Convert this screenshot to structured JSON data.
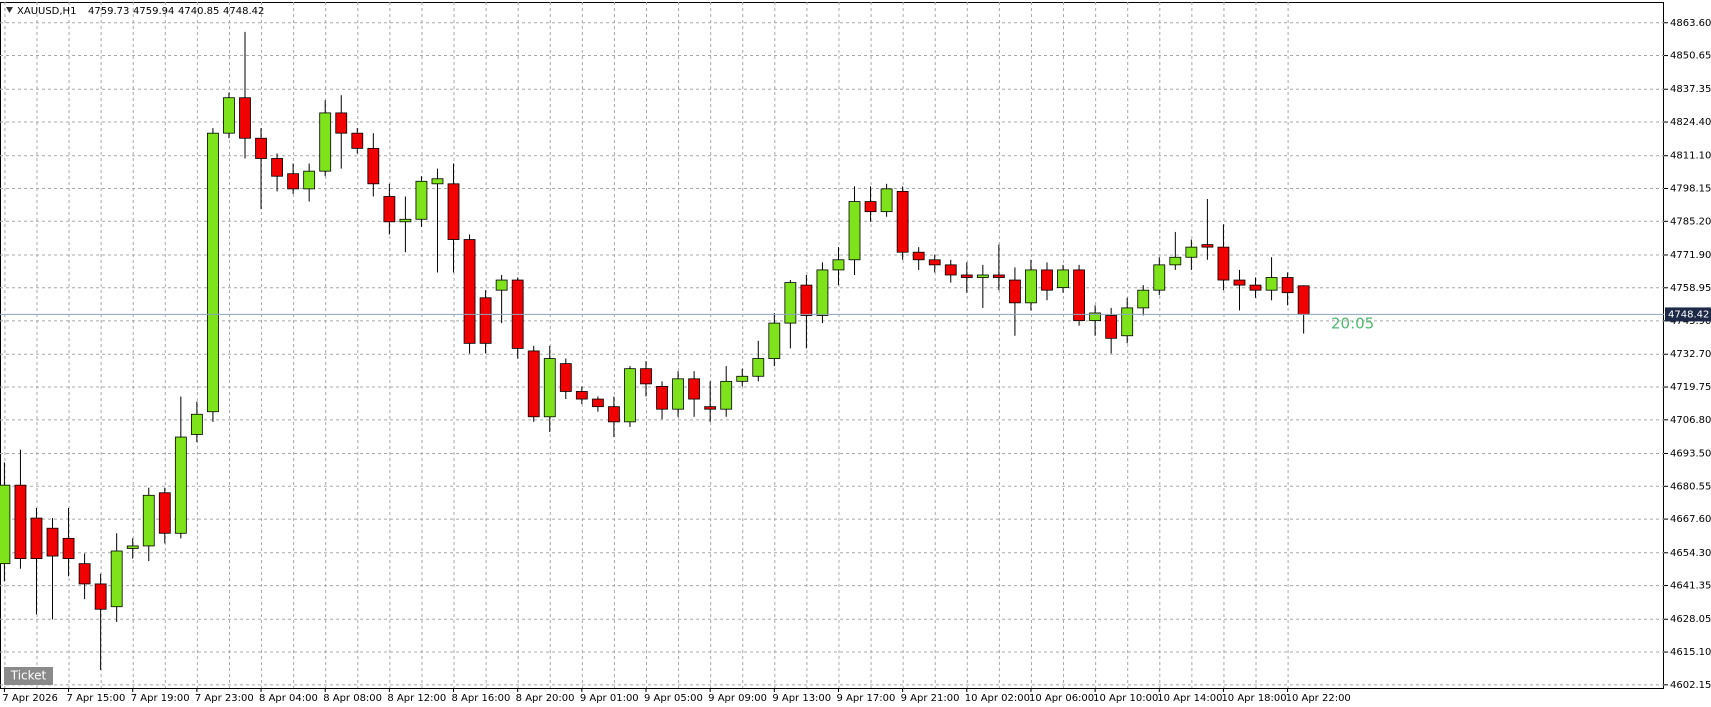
{
  "header": {
    "symbol": "XAUUSD,H1",
    "open": 4759.73,
    "high": 4759.94,
    "low": 4740.85,
    "close": 4748.42
  },
  "timer": "20:05",
  "button": "Ticket",
  "chart_data": {
    "type": "candlestick",
    "categories": [
      "7 Apr 2026",
      null,
      null,
      null,
      "7 Apr 15:00",
      null,
      null,
      null,
      "7 Apr 19:00",
      null,
      null,
      null,
      "7 Apr 23:00",
      null,
      null,
      null,
      "8 Apr 04:00",
      null,
      null,
      null,
      "8 Apr 08:00",
      null,
      null,
      null,
      "8 Apr 12:00",
      null,
      null,
      null,
      "8 Apr 16:00",
      null,
      null,
      null,
      "8 Apr 20:00",
      null,
      null,
      null,
      "9 Apr 01:00",
      null,
      null,
      null,
      "9 Apr 05:00",
      null,
      null,
      null,
      "9 Apr 09:00",
      null,
      null,
      null,
      "9 Apr 13:00",
      null,
      null,
      null,
      "9 Apr 17:00",
      null,
      null,
      null,
      "9 Apr 21:00",
      null,
      null,
      null,
      "10 Apr 02:00",
      null,
      null,
      null,
      "10 Apr 06:00",
      null,
      null,
      null,
      "10 Apr 10:00",
      null,
      null,
      null,
      "10 Apr 14:00",
      null,
      null,
      null,
      "10 Apr 18:00",
      null,
      null,
      null,
      "10 Apr 22:00",
      null
    ],
    "open": [
      4650,
      4681,
      4668,
      4664,
      4660,
      4650,
      4642,
      4633,
      4656,
      4657,
      4678,
      4662,
      4701,
      4710,
      4820,
      4834,
      4818,
      4810,
      4804,
      4798,
      4805,
      4828,
      4820,
      4814,
      4795,
      4785,
      4786,
      4800,
      4800,
      4778,
      4755,
      4758,
      4762,
      4734,
      4708,
      4729,
      4718,
      4715,
      4712,
      4706,
      4727,
      4720,
      4711,
      4723,
      4712,
      4711,
      4722,
      4724,
      4731,
      4745,
      4760,
      4748,
      4766,
      4770,
      4793,
      4789,
      4797,
      4773,
      4770,
      4768,
      4764,
      4763,
      4764,
      4762,
      4753,
      4766,
      4759,
      4766,
      4746,
      4748,
      4740,
      4751,
      4758,
      4768,
      4771,
      4776,
      4775,
      4762,
      4760,
      4758,
      4763,
      4759.73
    ],
    "high": [
      4690,
      4695,
      4672,
      4668,
      4672,
      4654,
      4646,
      4662,
      4660,
      4680,
      4680,
      4716,
      4714,
      4822,
      4836,
      4860,
      4822,
      4812,
      4808,
      4808,
      4833,
      4835,
      4822,
      4820,
      4800,
      4795,
      4803,
      4806,
      4808,
      4780,
      4758,
      4764,
      4763,
      4736,
      4736,
      4731,
      4720,
      4716,
      4716,
      4728,
      4730,
      4722,
      4726,
      4726,
      4722,
      4728,
      4727,
      4738,
      4749,
      4762,
      4764,
      4769,
      4775,
      4799,
      4799,
      4800,
      4799,
      4775,
      4772,
      4770,
      4769,
      4768,
      4776,
      4767,
      4770,
      4769,
      4768,
      4768,
      4752,
      4751,
      4755,
      4760,
      4771,
      4781,
      4778,
      4794,
      4784,
      4766,
      4763,
      4771,
      4765,
      4759.94
    ],
    "low": [
      4643,
      4648,
      4630,
      4628,
      4645,
      4636,
      4608,
      4627,
      4652,
      4651,
      4658,
      4660,
      4698,
      4706,
      4818,
      4810,
      4790,
      4797,
      4796,
      4793,
      4803,
      4806,
      4812,
      4795,
      4780,
      4773,
      4783,
      4765,
      4765,
      4733,
      4733,
      4745,
      4731,
      4706,
      4702,
      4715,
      4713,
      4710,
      4700,
      4704,
      4716,
      4707,
      4708,
      4708,
      4706,
      4708,
      4720,
      4722,
      4728,
      4735,
      4735,
      4745,
      4760,
      4764,
      4785,
      4787,
      4770,
      4766,
      4765,
      4761,
      4757,
      4751,
      4758,
      4740,
      4750,
      4754,
      4757,
      4744,
      4740,
      4733,
      4737,
      4748,
      4756,
      4766,
      4766,
      4770,
      4758,
      4750,
      4755,
      4754,
      4752,
      4740.85
    ],
    "close": [
      4681,
      4652,
      4652,
      4653,
      4652,
      4642,
      4632,
      4655,
      4657,
      4677,
      4662,
      4700,
      4709,
      4820,
      4834,
      4818,
      4810,
      4803,
      4798,
      4805,
      4828,
      4820,
      4814,
      4800,
      4785,
      4786,
      4801,
      4802,
      4778,
      4737,
      4737,
      4762,
      4735,
      4708,
      4731,
      4718,
      4715,
      4712,
      4706,
      4727,
      4721,
      4711,
      4723,
      4715,
      4711,
      4722,
      4724,
      4731,
      4745,
      4761,
      4748,
      4766,
      4770,
      4793,
      4789,
      4798,
      4773,
      4770,
      4768,
      4764,
      4763,
      4764,
      4763,
      4753,
      4766,
      4758,
      4766,
      4746,
      4749,
      4739,
      4751,
      4758,
      4768,
      4771,
      4775,
      4775,
      4762,
      4760,
      4758,
      4763,
      4757,
      4748.42
    ],
    "up_color": "#7fe31c",
    "down_color": "#f00000",
    "current_price": 4748.42,
    "ylim": [
      4600.9,
      4871.8
    ],
    "yticks": [
      {
        "value": 4863.6,
        "label": "4863.60"
      },
      {
        "value": 4850.65,
        "label": "4850.65"
      },
      {
        "value": 4837.35,
        "label": "4837.35"
      },
      {
        "value": 4824.4,
        "label": "4824.40"
      },
      {
        "value": 4811.1,
        "label": "4811.10"
      },
      {
        "value": 4798.15,
        "label": "4798.15"
      },
      {
        "value": 4785.2,
        "label": "4785.20"
      },
      {
        "value": 4771.9,
        "label": "4771.90"
      },
      {
        "value": 4758.95,
        "label": "4758.95"
      },
      {
        "value": 4745.9,
        "label": "4745.90"
      },
      {
        "value": 4732.7,
        "label": "4732.70"
      },
      {
        "value": 4719.75,
        "label": "4719.75"
      },
      {
        "value": 4706.8,
        "label": "4706.80"
      },
      {
        "value": 4693.5,
        "label": "4693.50"
      },
      {
        "value": 4680.55,
        "label": "4680.55"
      },
      {
        "value": 4667.6,
        "label": "4667.60"
      },
      {
        "value": 4654.3,
        "label": "4654.30"
      },
      {
        "value": 4641.35,
        "label": "4641.35"
      },
      {
        "value": 4628.05,
        "label": "4628.05"
      },
      {
        "value": 4615.1,
        "label": "4615.10"
      },
      {
        "value": 4602.15,
        "label": "4602.15"
      }
    ],
    "grid": true
  }
}
